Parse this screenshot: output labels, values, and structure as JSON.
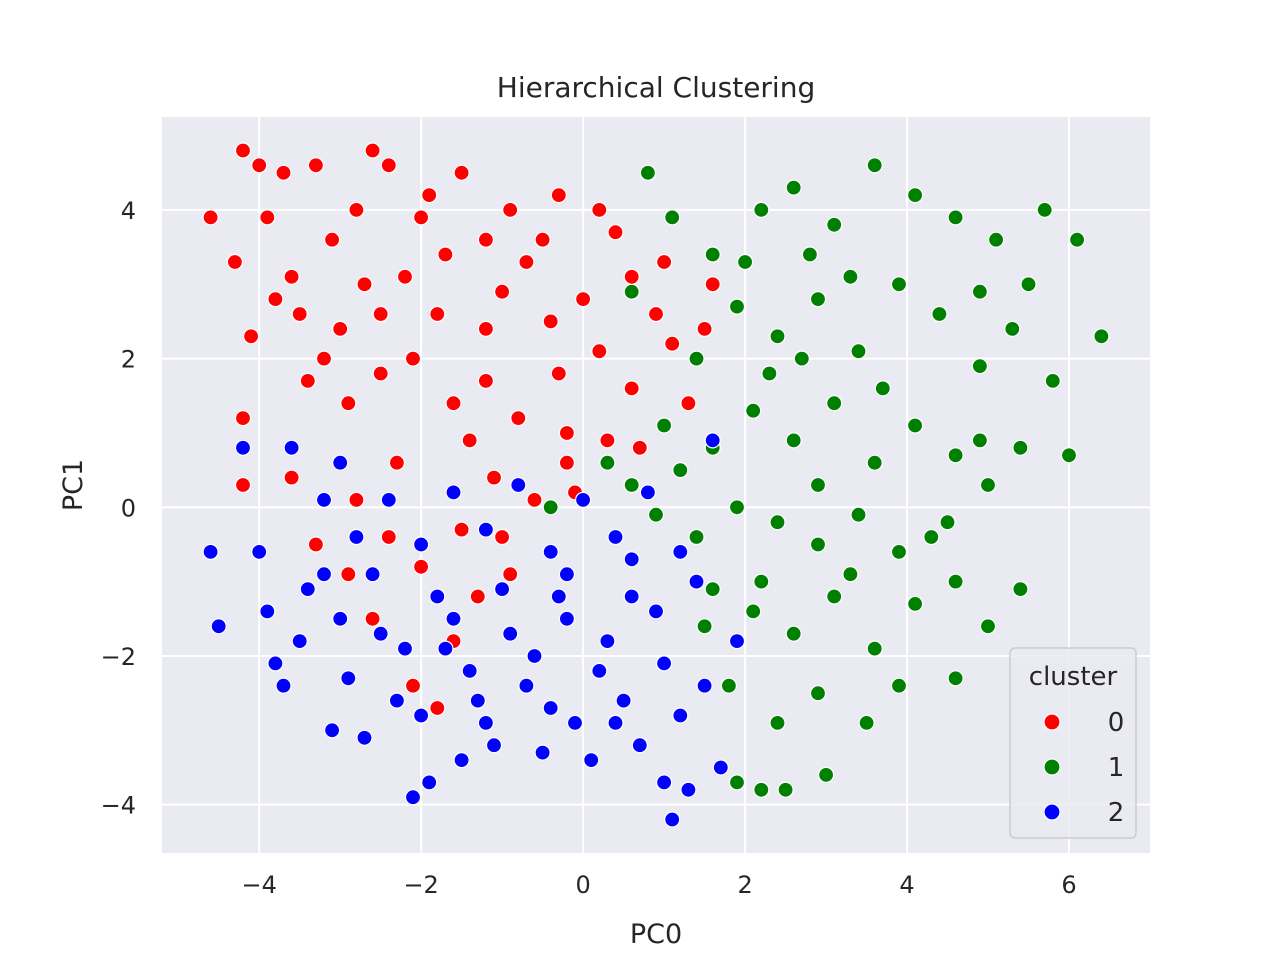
{
  "chart_data": {
    "type": "scatter",
    "title": "Hierarchical Clustering",
    "xlabel": "PC0",
    "ylabel": "PC1",
    "xlim": [
      -5.2,
      7.0
    ],
    "ylim": [
      -4.65,
      5.25
    ],
    "xticks": [
      -4,
      -2,
      0,
      2,
      4,
      6
    ],
    "yticks": [
      -4,
      -2,
      0,
      2,
      4
    ],
    "xtick_labels": [
      "−4",
      "−2",
      "0",
      "2",
      "4",
      "6"
    ],
    "ytick_labels": [
      "−4",
      "−2",
      "0",
      "2",
      "4"
    ],
    "grid": true,
    "background": "#eaeaf2",
    "legend": {
      "title": "cluster",
      "position": "lower right",
      "entries": [
        "0",
        "1",
        "2"
      ]
    },
    "series": [
      {
        "name": "0",
        "color": "#ff0000",
        "points": [
          [
            -4.6,
            3.9
          ],
          [
            -4.2,
            4.8
          ],
          [
            -4.0,
            4.6
          ],
          [
            -4.3,
            3.3
          ],
          [
            -4.1,
            2.3
          ],
          [
            -3.9,
            3.9
          ],
          [
            -3.7,
            4.5
          ],
          [
            -3.6,
            3.1
          ],
          [
            -3.5,
            2.6
          ],
          [
            -3.3,
            4.6
          ],
          [
            -3.1,
            3.6
          ],
          [
            -3.0,
            2.4
          ],
          [
            -2.6,
            4.8
          ],
          [
            -2.4,
            4.6
          ],
          [
            -2.2,
            3.1
          ],
          [
            -2.0,
            3.9
          ],
          [
            -1.8,
            2.6
          ],
          [
            -1.5,
            4.5
          ],
          [
            -1.2,
            3.6
          ],
          [
            -1.0,
            2.9
          ],
          [
            -0.7,
            3.3
          ],
          [
            -0.3,
            4.2
          ],
          [
            0.2,
            4.0
          ],
          [
            0.6,
            3.1
          ],
          [
            1.0,
            3.3
          ],
          [
            -2.9,
            1.4
          ],
          [
            -2.5,
            1.8
          ],
          [
            -2.1,
            2.0
          ],
          [
            -1.6,
            1.4
          ],
          [
            -1.2,
            1.7
          ],
          [
            -0.8,
            1.2
          ],
          [
            -0.3,
            1.8
          ],
          [
            0.2,
            2.1
          ],
          [
            0.6,
            1.6
          ],
          [
            1.1,
            2.2
          ],
          [
            1.5,
            2.4
          ],
          [
            -4.2,
            1.2
          ],
          [
            -3.4,
            1.7
          ],
          [
            -4.2,
            0.3
          ],
          [
            -2.8,
            0.1
          ],
          [
            -2.4,
            -0.4
          ],
          [
            -2.0,
            -0.8
          ],
          [
            -1.5,
            -0.3
          ],
          [
            -1.1,
            0.4
          ],
          [
            -0.6,
            0.1
          ],
          [
            -0.2,
            0.6
          ],
          [
            0.3,
            0.9
          ],
          [
            -2.6,
            -1.5
          ],
          [
            -2.2,
            -1.9
          ],
          [
            -1.8,
            -2.7
          ],
          [
            -1.3,
            -1.2
          ],
          [
            -0.9,
            -0.9
          ],
          [
            -3.3,
            -0.5
          ],
          [
            -2.9,
            -0.9
          ],
          [
            1.3,
            1.4
          ],
          [
            0.7,
            0.8
          ],
          [
            -0.4,
            2.5
          ],
          [
            -1.7,
            3.4
          ],
          [
            -2.7,
            3.0
          ],
          [
            -3.2,
            2.0
          ],
          [
            -0.2,
            1.0
          ],
          [
            -1.0,
            -0.4
          ],
          [
            -1.4,
            0.9
          ],
          [
            -2.3,
            0.6
          ],
          [
            -0.5,
            3.6
          ],
          [
            -1.9,
            4.2
          ],
          [
            -2.8,
            4.0
          ],
          [
            -3.8,
            2.8
          ],
          [
            0.0,
            2.8
          ],
          [
            0.9,
            2.6
          ],
          [
            1.6,
            3.0
          ],
          [
            -0.1,
            0.2
          ],
          [
            -1.6,
            -1.8
          ],
          [
            -2.1,
            -2.4
          ],
          [
            -3.6,
            0.4
          ],
          [
            -3.0,
            -1.5
          ],
          [
            -1.2,
            2.4
          ],
          [
            -2.5,
            2.6
          ],
          [
            -0.9,
            4.0
          ],
          [
            0.4,
            3.7
          ]
        ]
      },
      {
        "name": "1",
        "color": "#008000",
        "points": [
          [
            0.8,
            4.5
          ],
          [
            1.1,
            3.9
          ],
          [
            1.6,
            3.4
          ],
          [
            2.2,
            4.0
          ],
          [
            2.6,
            4.3
          ],
          [
            3.1,
            3.8
          ],
          [
            3.6,
            4.6
          ],
          [
            4.1,
            4.2
          ],
          [
            4.6,
            3.9
          ],
          [
            5.1,
            3.6
          ],
          [
            5.7,
            4.0
          ],
          [
            6.1,
            3.6
          ],
          [
            6.4,
            2.3
          ],
          [
            5.8,
            1.7
          ],
          [
            5.3,
            2.4
          ],
          [
            4.9,
            1.9
          ],
          [
            4.4,
            2.6
          ],
          [
            3.9,
            3.0
          ],
          [
            3.4,
            2.1
          ],
          [
            2.9,
            2.8
          ],
          [
            2.4,
            2.3
          ],
          [
            1.9,
            2.7
          ],
          [
            1.4,
            2.0
          ],
          [
            0.6,
            2.9
          ],
          [
            1.0,
            1.1
          ],
          [
            1.6,
            0.8
          ],
          [
            2.1,
            1.3
          ],
          [
            2.6,
            0.9
          ],
          [
            3.1,
            1.4
          ],
          [
            3.6,
            0.6
          ],
          [
            4.1,
            1.1
          ],
          [
            4.6,
            0.7
          ],
          [
            6.0,
            0.7
          ],
          [
            5.4,
            0.8
          ],
          [
            5.0,
            0.3
          ],
          [
            4.5,
            -0.2
          ],
          [
            3.9,
            -0.6
          ],
          [
            3.4,
            -0.1
          ],
          [
            2.9,
            -0.5
          ],
          [
            2.4,
            -0.2
          ],
          [
            1.9,
            0.0
          ],
          [
            1.4,
            -0.4
          ],
          [
            0.9,
            -0.1
          ],
          [
            1.6,
            -1.1
          ],
          [
            2.1,
            -1.4
          ],
          [
            2.6,
            -1.7
          ],
          [
            3.1,
            -1.2
          ],
          [
            3.6,
            -1.9
          ],
          [
            4.1,
            -1.3
          ],
          [
            4.6,
            -1.0
          ],
          [
            5.0,
            -1.6
          ],
          [
            5.4,
            -1.1
          ],
          [
            4.6,
            -2.3
          ],
          [
            3.9,
            -2.4
          ],
          [
            3.5,
            -2.9
          ],
          [
            3.0,
            -3.6
          ],
          [
            2.5,
            -3.8
          ],
          [
            2.2,
            -3.8
          ],
          [
            1.9,
            -3.7
          ],
          [
            2.4,
            -2.9
          ],
          [
            2.9,
            -2.5
          ],
          [
            1.8,
            -2.4
          ],
          [
            1.5,
            -1.6
          ],
          [
            1.2,
            0.5
          ],
          [
            0.6,
            0.3
          ],
          [
            0.3,
            0.6
          ],
          [
            -0.4,
            0.0
          ],
          [
            2.8,
            3.4
          ],
          [
            3.3,
            3.1
          ],
          [
            2.0,
            3.3
          ],
          [
            4.9,
            2.9
          ],
          [
            5.5,
            3.0
          ],
          [
            3.7,
            1.6
          ],
          [
            2.3,
            1.8
          ],
          [
            2.9,
            0.3
          ],
          [
            3.3,
            -0.9
          ],
          [
            2.2,
            -1.0
          ],
          [
            4.3,
            -0.4
          ],
          [
            4.9,
            0.9
          ],
          [
            2.7,
            2.0
          ]
        ]
      },
      {
        "name": "2",
        "color": "#0000ff",
        "points": [
          [
            -4.6,
            -0.6
          ],
          [
            -4.5,
            -1.6
          ],
          [
            -4.2,
            0.8
          ],
          [
            -4.0,
            -0.6
          ],
          [
            -3.9,
            -1.4
          ],
          [
            -3.8,
            -2.1
          ],
          [
            -3.7,
            -2.4
          ],
          [
            -3.6,
            0.8
          ],
          [
            -3.5,
            -1.8
          ],
          [
            -3.2,
            -0.9
          ],
          [
            -3.1,
            -3.0
          ],
          [
            -3.0,
            0.6
          ],
          [
            -2.9,
            -2.3
          ],
          [
            -2.7,
            -3.1
          ],
          [
            -2.5,
            -1.7
          ],
          [
            -2.3,
            -2.6
          ],
          [
            -2.1,
            -3.9
          ],
          [
            -1.9,
            -3.7
          ],
          [
            -1.7,
            -1.9
          ],
          [
            -1.5,
            -3.4
          ],
          [
            -1.3,
            -2.6
          ],
          [
            -1.1,
            -3.2
          ],
          [
            -0.9,
            -1.7
          ],
          [
            -0.7,
            -2.4
          ],
          [
            -0.5,
            -3.3
          ],
          [
            -0.3,
            -1.2
          ],
          [
            -0.1,
            -2.9
          ],
          [
            0.1,
            -3.4
          ],
          [
            0.3,
            -1.8
          ],
          [
            0.5,
            -2.6
          ],
          [
            0.7,
            -3.2
          ],
          [
            0.9,
            -1.4
          ],
          [
            1.0,
            -3.7
          ],
          [
            1.1,
            -4.2
          ],
          [
            1.3,
            -3.8
          ],
          [
            1.5,
            -2.4
          ],
          [
            1.7,
            -3.5
          ],
          [
            1.9,
            -1.8
          ],
          [
            1.6,
            0.9
          ],
          [
            1.2,
            -0.6
          ],
          [
            0.8,
            0.2
          ],
          [
            0.4,
            -0.4
          ],
          [
            0.0,
            0.1
          ],
          [
            -0.4,
            -0.6
          ],
          [
            -0.8,
            0.3
          ],
          [
            -1.2,
            -0.3
          ],
          [
            -1.6,
            0.2
          ],
          [
            -2.0,
            -0.5
          ],
          [
            -2.4,
            0.1
          ],
          [
            -2.8,
            -0.4
          ],
          [
            -3.2,
            0.1
          ],
          [
            -3.4,
            -1.1
          ],
          [
            -2.6,
            -0.9
          ],
          [
            -1.8,
            -1.2
          ],
          [
            -1.0,
            -1.1
          ],
          [
            -0.2,
            -0.9
          ],
          [
            0.6,
            -0.7
          ],
          [
            1.4,
            -1.0
          ],
          [
            -0.6,
            -2.0
          ],
          [
            0.2,
            -2.2
          ],
          [
            1.0,
            -2.1
          ],
          [
            -1.4,
            -2.2
          ],
          [
            -2.2,
            -1.9
          ],
          [
            -3.0,
            -1.5
          ],
          [
            -2.0,
            -2.8
          ],
          [
            -1.2,
            -2.9
          ],
          [
            -0.4,
            -2.7
          ],
          [
            0.4,
            -2.9
          ],
          [
            1.2,
            -2.8
          ],
          [
            0.6,
            -1.2
          ],
          [
            -0.2,
            -1.5
          ],
          [
            -1.6,
            -1.5
          ]
        ]
      }
    ]
  }
}
